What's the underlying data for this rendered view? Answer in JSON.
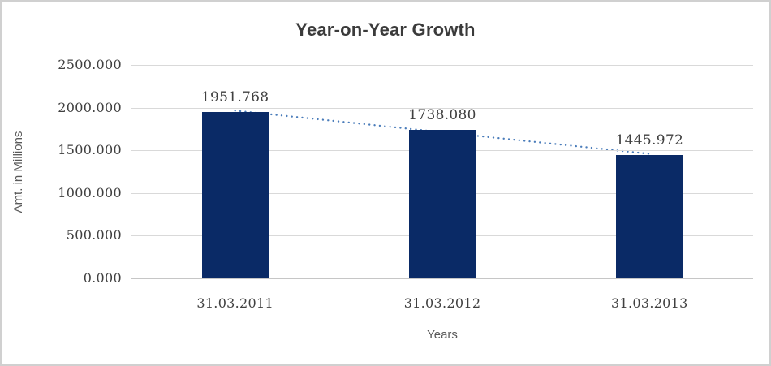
{
  "chart_data": {
    "type": "bar",
    "title": "Year-on-Year Growth",
    "xlabel": "Years",
    "ylabel": "Amt. in Millions",
    "categories": [
      "31.03.2011",
      "31.03.2012",
      "31.03.2013"
    ],
    "values": [
      1951.768,
      1738.08,
      1445.972
    ],
    "data_labels": [
      "1951.768",
      "1738.080",
      "1445.972"
    ],
    "ytick_labels": [
      "2500.000",
      "2000.000",
      "1500.000",
      "1000.000",
      "500.000",
      "0.000"
    ],
    "ylim": [
      0,
      2500
    ],
    "grid": true,
    "legend_position": "none",
    "trendline": {
      "type": "linear",
      "style": "dotted",
      "color": "#4a7cba"
    },
    "colors": {
      "bar": "#0a2a66",
      "gridline": "#d9d9d9",
      "axis_line": "#c6c6c6",
      "title_text": "#3b3b3b",
      "tick_text": "#404040",
      "axis_title_text": "#595959",
      "frame_border": "#d0d0d0",
      "background": "#ffffff"
    }
  }
}
